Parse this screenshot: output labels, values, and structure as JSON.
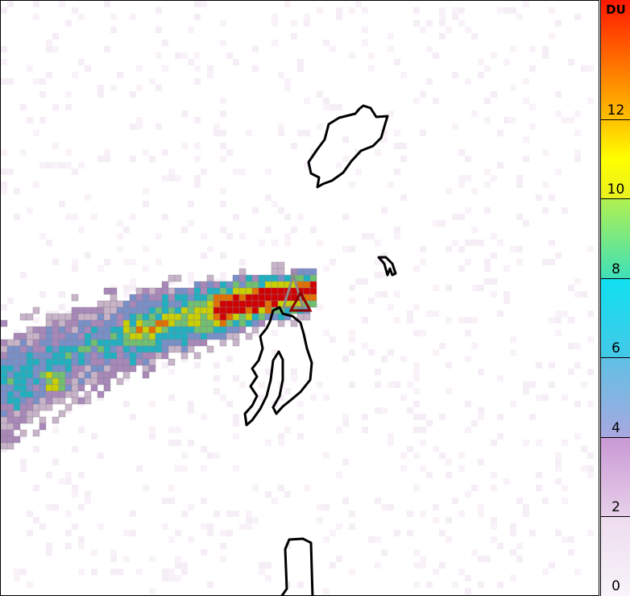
{
  "colorbar": {
    "unit": "DU",
    "min": 0,
    "max": 15,
    "ticks": [
      "0",
      "2",
      "4",
      "6",
      "8",
      "10",
      "12"
    ],
    "stops": [
      {
        "v": 0,
        "c": "#f8f4fa"
      },
      {
        "v": 2,
        "c": "#eedcef"
      },
      {
        "v": 2,
        "c": "#e8d0ea"
      },
      {
        "v": 4,
        "c": "#c898d4"
      },
      {
        "v": 4,
        "c": "#a8a8e0"
      },
      {
        "v": 6,
        "c": "#60c0e4"
      },
      {
        "v": 6,
        "c": "#44c8e8"
      },
      {
        "v": 8,
        "c": "#10e0f0"
      },
      {
        "v": 8,
        "c": "#40e0b8"
      },
      {
        "v": 10,
        "c": "#b0f050"
      },
      {
        "v": 10,
        "c": "#e8f020"
      },
      {
        "v": 11,
        "c": "#ffff00"
      },
      {
        "v": 12,
        "c": "#ffc000"
      },
      {
        "v": 15,
        "c": "#ff1800"
      }
    ]
  },
  "markers": [
    {
      "name": "volcano-gray",
      "color": "#8a8a8a"
    },
    {
      "name": "volcano-red",
      "color": "#8b0000"
    }
  ],
  "coastline_color": "#000000"
}
